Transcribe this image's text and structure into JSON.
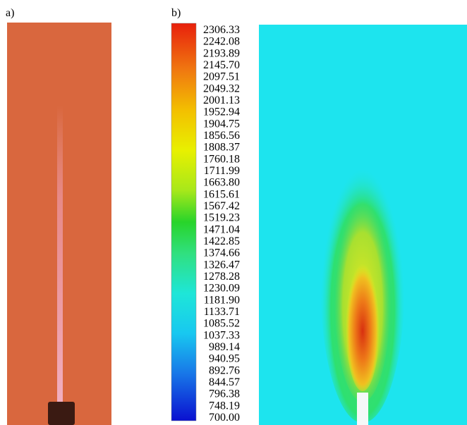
{
  "panels": [
    {
      "label": "a)"
    },
    {
      "label": "b)",
      "colorbar": {
        "labels": [
          "2306.33",
          "2242.08",
          "2193.89",
          "2145.70",
          "2097.51",
          "2049.32",
          "2001.13",
          "1952.94",
          "1904.75",
          "1856.56",
          "1808.37",
          "1760.18",
          "1711.99",
          "1663.80",
          "1615.61",
          "1567.42",
          "1519.23",
          "1471.04",
          "1422.85",
          "1374.66",
          "1326.47",
          "1278.28",
          "1230.09",
          "1181.90",
          "1133.71",
          "1085.52",
          "1037.33",
          "989.14",
          "940.95",
          "892.76",
          "844.57",
          "796.38",
          "748.19",
          "700.00"
        ]
      }
    }
  ]
}
